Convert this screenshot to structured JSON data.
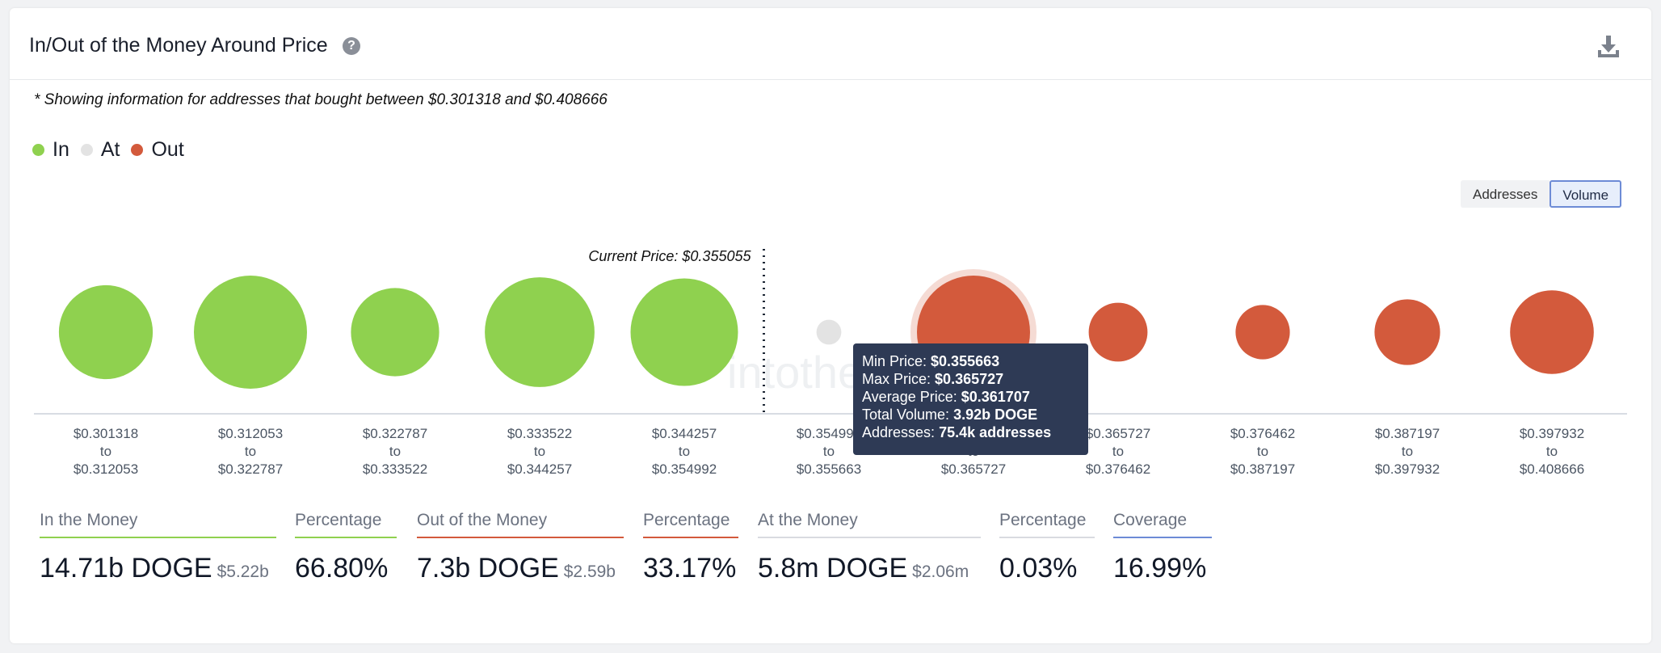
{
  "header": {
    "title": "In/Out of the Money Around Price",
    "help_icon": "question-circle-icon",
    "download_icon": "download-icon"
  },
  "note": "* Showing information for addresses that bought between $0.301318 and $0.408666",
  "legend": [
    {
      "label": "In",
      "color": "#8fd14f"
    },
    {
      "label": "At",
      "color": "#e3e3e3"
    },
    {
      "label": "Out",
      "color": "#d35a3c"
    }
  ],
  "toggle": {
    "addresses_label": "Addresses",
    "volume_label": "Volume",
    "selected": "Volume"
  },
  "colors": {
    "in": "#8fd14f",
    "at": "#e3e3e3",
    "out": "#d35a3c",
    "tooltip_bg": "#2e3a55"
  },
  "chart_data": {
    "type": "scatter",
    "x_unit": "price range (USD)",
    "size_metric": "Volume",
    "current_price_label": "Current Price: $0.355055",
    "current_price": 0.355055,
    "clusters": [
      {
        "from": "$0.301318",
        "to": "$0.312053",
        "status": "in",
        "relative_size": 0.83
      },
      {
        "from": "$0.312053",
        "to": "$0.322787",
        "status": "in",
        "relative_size": 1.0
      },
      {
        "from": "$0.322787",
        "to": "$0.333522",
        "status": "in",
        "relative_size": 0.78
      },
      {
        "from": "$0.333522",
        "to": "$0.344257",
        "status": "in",
        "relative_size": 0.97
      },
      {
        "from": "$0.344257",
        "to": "$0.354992",
        "status": "in",
        "relative_size": 0.95
      },
      {
        "from": "$0.354992",
        "to": "$0.355663",
        "status": "at",
        "relative_size": 0.22
      },
      {
        "from": "$0.355663",
        "to": "$0.365727",
        "status": "out",
        "relative_size": 1.0,
        "highlighted": true
      },
      {
        "from": "$0.365727",
        "to": "$0.376462",
        "status": "out",
        "relative_size": 0.52
      },
      {
        "from": "$0.376462",
        "to": "$0.387197",
        "status": "out",
        "relative_size": 0.48
      },
      {
        "from": "$0.387197",
        "to": "$0.397932",
        "status": "out",
        "relative_size": 0.58
      },
      {
        "from": "$0.397932",
        "to": "$0.408666",
        "status": "out",
        "relative_size": 0.74
      }
    ],
    "range_connector": "to"
  },
  "tooltip": {
    "min_price_label": "Min Price:",
    "min_price": "$0.355663",
    "max_price_label": "Max Price:",
    "max_price": "$0.365727",
    "avg_price_label": "Average Price:",
    "avg_price": "$0.361707",
    "volume_label": "Total Volume:",
    "volume": "3.92b DOGE",
    "addresses_label": "Addresses:",
    "addresses": "75.4k addresses"
  },
  "stats": [
    {
      "label": "In the Money",
      "value": "14.71b DOGE",
      "sub": "$5.22b",
      "line_color": "#8fd14f"
    },
    {
      "label": "Percentage",
      "value": "66.80%",
      "sub": "",
      "line_color": "#8fd14f"
    },
    {
      "label": "Out of the Money",
      "value": "7.3b DOGE",
      "sub": "$2.59b",
      "line_color": "#d35a3c"
    },
    {
      "label": "Percentage",
      "value": "33.17%",
      "sub": "",
      "line_color": "#d35a3c"
    },
    {
      "label": "At the Money",
      "value": "5.8m DOGE",
      "sub": "$2.06m",
      "line_color": "#d9dbe0"
    },
    {
      "label": "Percentage",
      "value": "0.03%",
      "sub": "",
      "line_color": "#d9dbe0"
    },
    {
      "label": "Coverage",
      "value": "16.99%",
      "sub": "",
      "line_color": "#6d8bd6"
    }
  ]
}
